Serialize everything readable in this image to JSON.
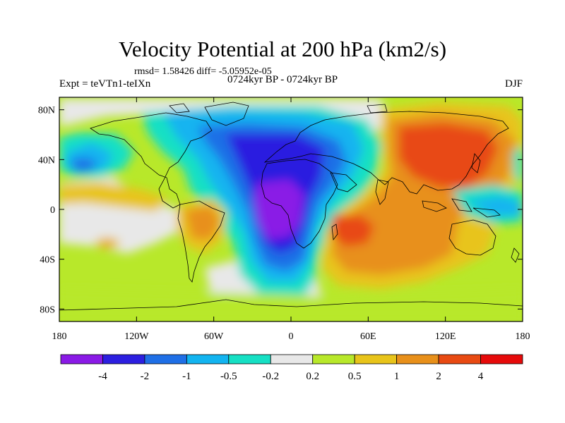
{
  "figure": {
    "title": "Velocity Potential at 200 hPa (km2/s)",
    "stats_line": "rmsd= 1.58426 diff= -5.05952e-05",
    "experiment": "Expt = teVTn1-teIXn",
    "period": "0724kyr BP - 0724kyr BP",
    "season": "DJF"
  },
  "axes": {
    "lat_ticks": [
      {
        "value": 80,
        "label": "80N"
      },
      {
        "value": 40,
        "label": "40N"
      },
      {
        "value": 0,
        "label": "0"
      },
      {
        "value": -40,
        "label": "40S"
      },
      {
        "value": -80,
        "label": "80S"
      }
    ],
    "lon_ticks": [
      {
        "value": -180,
        "label": "180"
      },
      {
        "value": -120,
        "label": "120W"
      },
      {
        "value": -60,
        "label": "60W"
      },
      {
        "value": 0,
        "label": "0"
      },
      {
        "value": 60,
        "label": "60E"
      },
      {
        "value": 120,
        "label": "120E"
      },
      {
        "value": 180,
        "label": "180"
      }
    ],
    "lon_range": [
      -180,
      180
    ],
    "lat_range": [
      -90,
      90
    ]
  },
  "colorbar": {
    "colors": [
      "#8a1ae6",
      "#2c1fe0",
      "#1f6fe6",
      "#12b4f0",
      "#16e0c4",
      "#e8e8e8",
      "#b8e82a",
      "#e8c41a",
      "#e8901a",
      "#e84a12",
      "#e60a0a"
    ],
    "labels": [
      "-4",
      "-2",
      "-1",
      "-0.5",
      "-0.2",
      "0.2",
      "0.5",
      "1",
      "2",
      "4"
    ]
  }
}
